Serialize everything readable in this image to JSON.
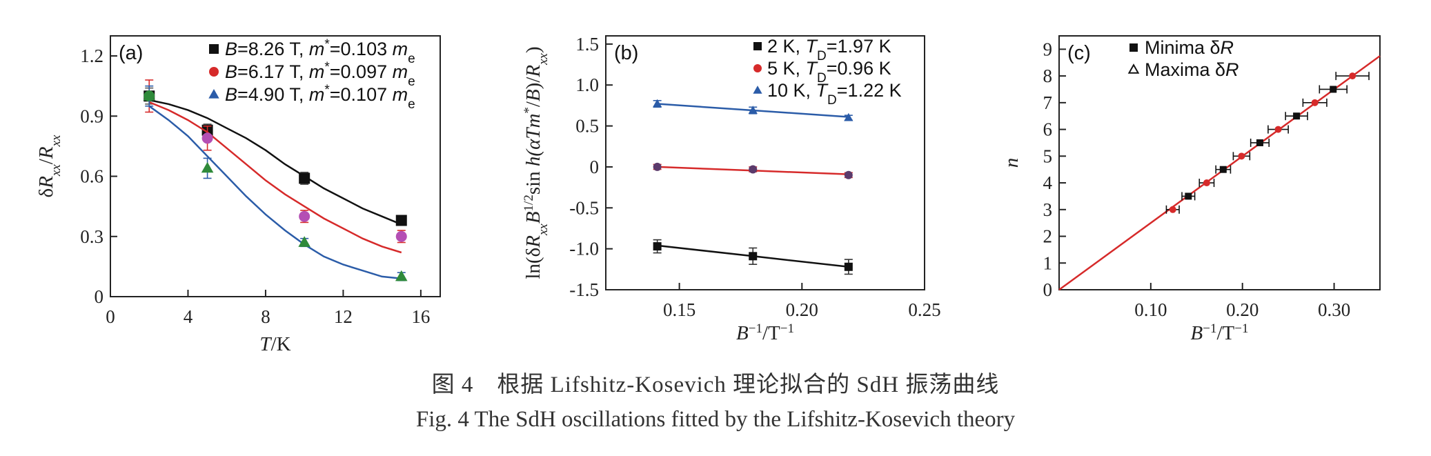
{
  "chart_data": [
    {
      "type": "scatter",
      "panel_label": "(a)",
      "xlabel": "T/K",
      "ylabel": "δR_xx/R_xx",
      "xlim": [
        0,
        17
      ],
      "ylim": [
        0,
        1.3
      ],
      "xticks": [
        0,
        4,
        8,
        12,
        16
      ],
      "yticks": [
        0.3,
        0.6,
        0.9,
        1.2
      ],
      "ytick_labels": [
        "0.3",
        "0.6",
        "0.9",
        "1.2"
      ],
      "legend_position": "top-right",
      "series": [
        {
          "name": "B=8.26 T, m*=0.103 m_e",
          "color": "#111111",
          "marker": "square",
          "x": [
            2,
            5,
            10,
            15
          ],
          "y": [
            1.0,
            0.83,
            0.59,
            0.38
          ],
          "yerr": [
            0.04,
            0.03,
            0.03,
            0.02
          ],
          "fit_x": [
            2,
            3,
            4,
            5,
            6,
            7,
            8,
            9,
            10,
            11,
            12,
            13,
            14,
            15
          ],
          "fit_y": [
            0.98,
            0.96,
            0.93,
            0.89,
            0.84,
            0.79,
            0.73,
            0.66,
            0.6,
            0.54,
            0.49,
            0.44,
            0.4,
            0.36
          ]
        },
        {
          "name": "B=6.17 T, m*=0.097 m_e",
          "color": "#d62a2a",
          "marker": "circle",
          "x": [
            2,
            5,
            10,
            15
          ],
          "y": [
            1.0,
            0.79,
            0.4,
            0.3
          ],
          "yerr": [
            0.08,
            0.06,
            0.03,
            0.03
          ],
          "fit_x": [
            2,
            3,
            4,
            5,
            6,
            7,
            8,
            9,
            10,
            11,
            12,
            13,
            14,
            15
          ],
          "fit_y": [
            0.97,
            0.93,
            0.88,
            0.82,
            0.74,
            0.66,
            0.58,
            0.51,
            0.45,
            0.39,
            0.34,
            0.29,
            0.25,
            0.22
          ]
        },
        {
          "name": "B=4.90 T, m*=0.107 m_e",
          "color": "#2b5ca8",
          "marker": "triangle",
          "x": [
            2,
            5,
            10,
            15
          ],
          "y": [
            1.0,
            0.64,
            0.27,
            0.1
          ],
          "yerr": [
            0.05,
            0.05,
            0.02,
            0.02
          ],
          "fit_x": [
            2,
            3,
            4,
            5,
            6,
            7,
            8,
            9,
            10,
            11,
            12,
            13,
            14,
            15
          ],
          "fit_y": [
            0.95,
            0.88,
            0.8,
            0.7,
            0.6,
            0.5,
            0.41,
            0.33,
            0.26,
            0.2,
            0.16,
            0.13,
            0.1,
            0.09
          ]
        }
      ]
    },
    {
      "type": "scatter",
      "panel_label": "(b)",
      "xlabel": "B⁻¹/T⁻¹",
      "ylabel": "ln(δR_xx B^1/2 sin h(αTm*/B)/R_xx)",
      "xlim": [
        0.12,
        0.25
      ],
      "ylim": [
        -1.5,
        1.6
      ],
      "xticks": [
        0.15,
        0.2,
        0.25
      ],
      "xtick_labels": [
        "0.15",
        "0.20",
        "0.25"
      ],
      "yticks": [
        -1.5,
        -1.0,
        -0.5,
        0,
        0.5,
        1.0,
        1.5
      ],
      "ytick_labels": [
        "-1.5",
        "-1.0",
        "-0.5",
        "0",
        "0.5",
        "1.0",
        "1.5"
      ],
      "legend_position": "top-right",
      "series": [
        {
          "name": "2 K, T_D=1.97 K",
          "color": "#111111",
          "marker": "square",
          "x": [
            0.141,
            0.18,
            0.219
          ],
          "y": [
            -0.97,
            -1.09,
            -1.22
          ],
          "yerr": [
            0.08,
            0.1,
            0.09
          ],
          "fit_y": [
            -0.96,
            -1.09,
            -1.22
          ]
        },
        {
          "name": "5 K, T_D=0.96 K",
          "color": "#d62a2a",
          "marker": "circle",
          "x": [
            0.141,
            0.18,
            0.219
          ],
          "y": [
            0.0,
            -0.03,
            -0.1
          ],
          "yerr": [
            0.03,
            0.03,
            0.03
          ],
          "fit_y": [
            0.0,
            -0.045,
            -0.09
          ]
        },
        {
          "name": "10 K, T_D=1.22 K",
          "color": "#2b5ca8",
          "marker": "triangle",
          "x": [
            0.141,
            0.18,
            0.219
          ],
          "y": [
            0.77,
            0.69,
            0.6
          ],
          "yerr": [
            0.04,
            0.04,
            0.03
          ],
          "fit_y": [
            0.77,
            0.69,
            0.61
          ]
        }
      ]
    },
    {
      "type": "scatter",
      "panel_label": "(c)",
      "xlabel": "B⁻¹/T⁻¹",
      "ylabel": "n",
      "xlim": [
        0,
        0.35
      ],
      "ylim": [
        0,
        9.5
      ],
      "xticks": [
        0.1,
        0.2,
        0.3
      ],
      "xtick_labels": [
        "0.10",
        "0.20",
        "0.30"
      ],
      "yticks": [
        0,
        1,
        2,
        3,
        4,
        5,
        6,
        7,
        8,
        9
      ],
      "legend_position": "top-left",
      "fit_line": {
        "color": "#d62a2a",
        "x": [
          0,
          0.35
        ],
        "y": [
          0,
          8.75
        ]
      },
      "series": [
        {
          "name": "Minima δR",
          "color": "#111111",
          "marker": "square",
          "x": [
            0.141,
            0.179,
            0.219,
            0.259,
            0.299
          ],
          "y": [
            3.5,
            4.5,
            5.5,
            6.5,
            7.5
          ],
          "xerr": [
            0.007,
            0.008,
            0.01,
            0.012,
            0.015
          ]
        },
        {
          "name": "Maxima δR",
          "color": "#d62a2a",
          "marker": "circle",
          "x": [
            0.124,
            0.161,
            0.199,
            0.239,
            0.279,
            0.32
          ],
          "y": [
            3,
            4,
            5,
            6,
            7,
            8
          ],
          "xerr": [
            0.007,
            0.008,
            0.009,
            0.011,
            0.013,
            0.018
          ]
        }
      ]
    }
  ],
  "caption": {
    "chinese": "图 4　根据 Lifshitz-Kosevich 理论拟合的 SdH 振荡曲线",
    "english": "Fig. 4   The SdH oscillations fitted by the Lifshitz-Kosevich theory"
  }
}
